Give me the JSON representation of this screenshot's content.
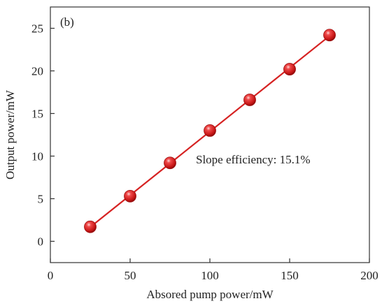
{
  "chart_data": {
    "type": "scatter",
    "panel_label": "(b)",
    "xlabel": "Absored pump power/mW",
    "ylabel": "Output power/mW",
    "xlim": [
      0,
      200
    ],
    "ylim": [
      -2.5,
      27.5
    ],
    "x_ticks": [
      0,
      50,
      100,
      150,
      200
    ],
    "y_ticks": [
      0,
      5,
      10,
      15,
      20,
      25
    ],
    "grid": false,
    "legend": "none",
    "annotation": "Slope efficiency: 15.1%",
    "series": [
      {
        "x": [
          25,
          50,
          75,
          100,
          125,
          150,
          175
        ],
        "y": [
          1.7,
          5.3,
          9.2,
          13.0,
          16.6,
          20.2,
          24.2
        ],
        "color": "#d62222",
        "marker": "sphere",
        "fit_line": true
      }
    ]
  }
}
